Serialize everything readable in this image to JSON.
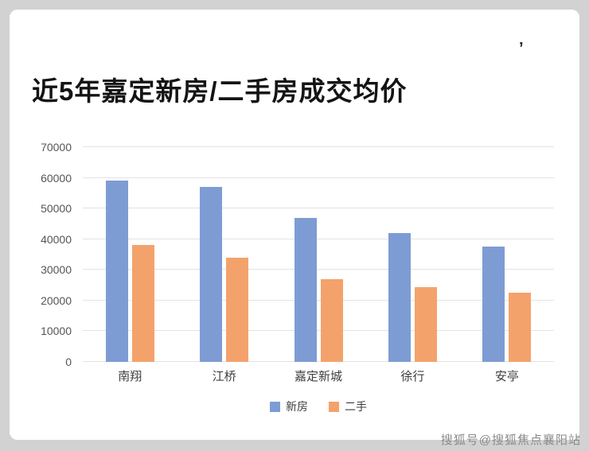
{
  "page": {
    "watermark": "搜狐号@搜狐焦点襄阳站",
    "stray_mark": "’"
  },
  "chart_data": {
    "type": "bar",
    "title": "近5年嘉定新房/二手房成交均价",
    "categories": [
      "南翔",
      "江桥",
      "嘉定新城",
      "徐行",
      "安亭"
    ],
    "series": [
      {
        "name": "新房",
        "color": "#7e9cd4",
        "values": [
          59000,
          57000,
          47000,
          42000,
          37500
        ]
      },
      {
        "name": "二手",
        "color": "#f4a26b",
        "values": [
          38000,
          34000,
          27000,
          24500,
          22500
        ]
      }
    ],
    "ylim": [
      0,
      70000
    ],
    "yticks": [
      0,
      10000,
      20000,
      30000,
      40000,
      50000,
      60000,
      70000
    ],
    "grid": true,
    "legend_position": "bottom"
  }
}
